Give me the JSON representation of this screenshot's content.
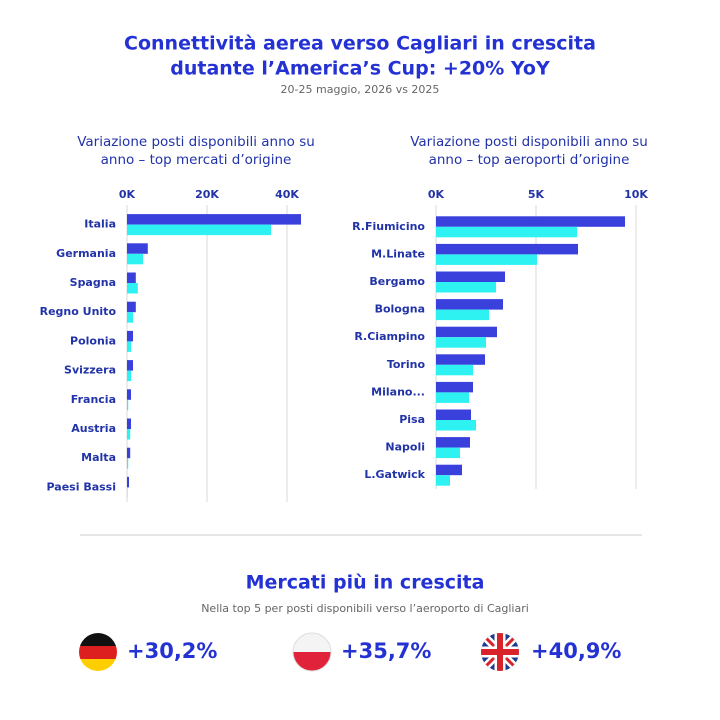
{
  "header": {
    "title": [
      "Connettività aerea verso Cagliari in crescita",
      "dutante l’America’s Cup: +20% YoY"
    ],
    "subtitle": "20-25 maggio, 2026 vs 2025"
  },
  "chart_data": [
    {
      "type": "hbar",
      "title": [
        "Variazione posti disponibili anno su",
        "anno – top mercati d’origine"
      ],
      "categories": [
        "Italia",
        "Germania",
        "Spagna",
        "Regno Unito",
        "Polonia",
        "Svizzera",
        "Francia",
        "Austria",
        "Malta",
        "Paesi Bassi"
      ],
      "series": [
        {
          "color": "#3a40dc",
          "values": [
            43500,
            5200,
            2200,
            2200,
            1500,
            1500,
            1000,
            1000,
            800,
            500
          ]
        },
        {
          "color": "#2ef2f2",
          "values": [
            36000,
            4000,
            2700,
            1500,
            1000,
            1000,
            300,
            800,
            300,
            100
          ]
        }
      ],
      "xlim": [
        0,
        44000
      ],
      "xticks": [
        {
          "value": 0,
          "label": "0K"
        },
        {
          "value": 20000,
          "label": "20K"
        },
        {
          "value": 40000,
          "label": "40K"
        }
      ],
      "grid": true
    },
    {
      "type": "hbar",
      "title": [
        "Variazione posti disponibili anno su",
        "anno – top aeroporti d’origine"
      ],
      "categories": [
        "R.Fiumicino",
        "M.Linate",
        "Bergamo",
        "Bologna",
        "R.Ciampino",
        "Torino",
        "Milano...",
        "Pisa",
        "Napoli",
        "L.Gatwick"
      ],
      "series": [
        {
          "color": "#3a40dc",
          "values": [
            9450,
            7100,
            3450,
            3350,
            3050,
            2450,
            1850,
            1750,
            1700,
            1300
          ]
        },
        {
          "color": "#2ef2f2",
          "values": [
            7050,
            5050,
            3000,
            2650,
            2500,
            1850,
            1650,
            2000,
            1200,
            700
          ]
        }
      ],
      "xlim": [
        0,
        10500
      ],
      "xticks": [
        {
          "value": 0,
          "label": "0K"
        },
        {
          "value": 5000,
          "label": "5K"
        },
        {
          "value": 10000,
          "label": "10K"
        }
      ],
      "grid": true
    }
  ],
  "highlights": {
    "title": "Mercati più in crescita",
    "subtitle": "Nella top 5 per posti disponibili verso l’aeroporto di  Cagliari",
    "items": [
      "+30,2%",
      "+35,7%",
      "+40,9%"
    ]
  }
}
